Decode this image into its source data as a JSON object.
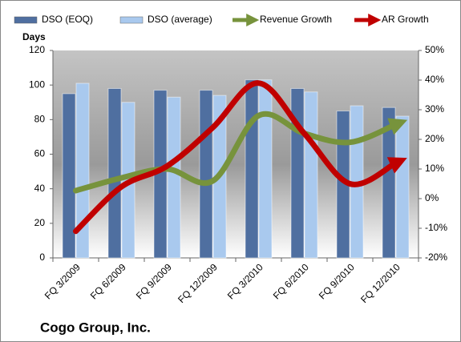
{
  "chart_data": {
    "type": "combo",
    "title": "Cogo Group, Inc.",
    "y_label": "Days",
    "categories": [
      "FQ 3/2009",
      "FQ 6/2009",
      "FQ 9/2009",
      "FQ 12/2009",
      "FQ 3/2010",
      "FQ 6/2010",
      "FQ 9/2010",
      "FQ 12/2010"
    ],
    "series": [
      {
        "name": "DSO (EOQ)",
        "type": "bar",
        "color": "#4f6fa0",
        "values": [
          95,
          98,
          97,
          97,
          103,
          98,
          85,
          87
        ]
      },
      {
        "name": "DSO (average)",
        "type": "bar",
        "color": "#a9c9ee",
        "values": [
          101,
          90,
          93,
          94,
          103,
          96,
          88,
          82
        ]
      },
      {
        "name": "Revenue Growth",
        "type": "line",
        "axis": "y2",
        "color": "#77933c",
        "values": [
          2.7,
          7,
          10,
          6,
          28,
          22,
          19,
          25
        ]
      },
      {
        "name": "AR Growth",
        "type": "line",
        "axis": "y2",
        "color": "#c00000",
        "values": [
          -11,
          4,
          11,
          24,
          39,
          22,
          5,
          12
        ]
      }
    ],
    "ylim": [
      0,
      120
    ],
    "yticks": [
      0,
      20,
      40,
      60,
      80,
      100,
      120
    ],
    "y2lim": [
      -20,
      50
    ],
    "y2ticks": [
      {
        "value": -20,
        "label": "-20%"
      },
      {
        "value": -10,
        "label": "-10%"
      },
      {
        "value": 0,
        "label": "0%"
      },
      {
        "value": 10,
        "label": "10%"
      },
      {
        "value": 20,
        "label": "20%"
      },
      {
        "value": 30,
        "label": "30%"
      },
      {
        "value": 40,
        "label": "40%"
      },
      {
        "value": 50,
        "label": "50%"
      }
    ]
  }
}
